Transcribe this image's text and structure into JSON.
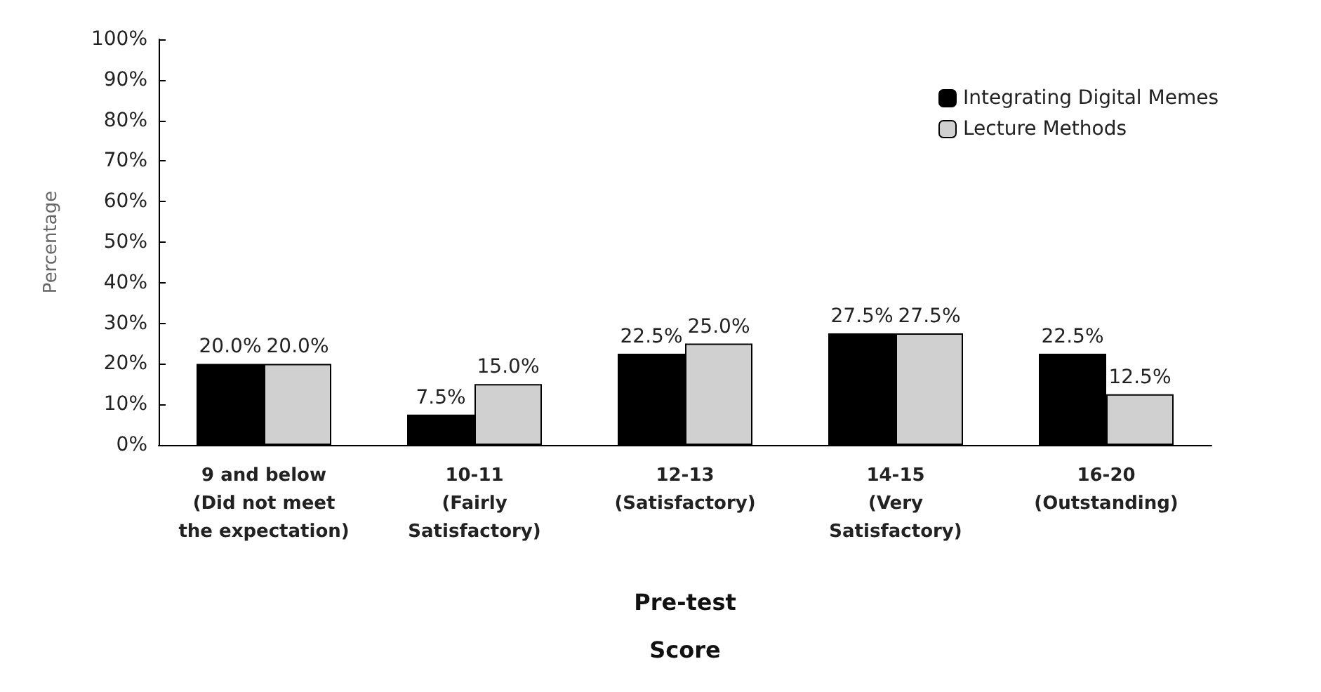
{
  "chart_data": {
    "type": "bar",
    "xlabel": "Pre-test\nScore",
    "ylabel": "Percentage",
    "categories": [
      "9 and below\n(Did not meet\nthe expectation)",
      "10-11\n(Fairly\nSatisfactory)",
      "12-13\n(Satisfactory)",
      "14-15\n(Very\nSatisfactory)",
      "16-20\n(Outstanding)"
    ],
    "series": [
      {
        "name": "Integrating Digital Memes",
        "color": "#000000",
        "values": [
          20,
          7.5,
          22.5,
          27.5,
          22.5
        ],
        "value_labels": [
          "20.0%",
          "7.5%",
          "22.5%",
          "27.5%",
          "22.5%"
        ]
      },
      {
        "name": "Lecture Methods",
        "color": "#d0d0d0",
        "values": [
          20,
          15,
          25,
          27.5,
          12.5
        ],
        "value_labels": [
          "20.0%",
          "15.0%",
          "25.0%",
          "27.5%",
          "12.5%"
        ]
      }
    ],
    "ylim": [
      0,
      100
    ],
    "yticks": [
      {
        "value": 0,
        "label": "0%"
      },
      {
        "value": 10,
        "label": "10%"
      },
      {
        "value": 20,
        "label": "20%"
      },
      {
        "value": 30,
        "label": "30%"
      },
      {
        "value": 40,
        "label": "40%"
      },
      {
        "value": 50,
        "label": "50%"
      },
      {
        "value": 60,
        "label": "60%"
      },
      {
        "value": 70,
        "label": "70%"
      },
      {
        "value": 80,
        "label": "80%"
      },
      {
        "value": 90,
        "label": "90%"
      },
      {
        "value": 100,
        "label": "100%"
      }
    ],
    "grid": false,
    "legend": "top right"
  }
}
